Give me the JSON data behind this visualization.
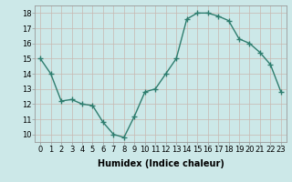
{
  "x": [
    0,
    1,
    2,
    3,
    4,
    5,
    6,
    7,
    8,
    9,
    10,
    11,
    12,
    13,
    14,
    15,
    16,
    17,
    18,
    19,
    20,
    21,
    22,
    23
  ],
  "y": [
    15.0,
    14.0,
    12.2,
    12.3,
    12.0,
    11.9,
    10.8,
    10.0,
    9.8,
    11.2,
    12.8,
    13.0,
    14.0,
    15.0,
    17.6,
    18.0,
    18.0,
    17.8,
    17.5,
    16.3,
    16.0,
    15.4,
    14.6,
    12.8
  ],
  "line_color": "#2e7d6e",
  "marker": "+",
  "marker_size": 4,
  "marker_edge_width": 1.0,
  "background_color": "#cce8e8",
  "grid_color": "#c8b8b0",
  "xlabel": "Humidex (Indice chaleur)",
  "ylim": [
    9.5,
    18.5
  ],
  "xlim": [
    -0.5,
    23.5
  ],
  "yticks": [
    10,
    11,
    12,
    13,
    14,
    15,
    16,
    17,
    18
  ],
  "xticks": [
    0,
    1,
    2,
    3,
    4,
    5,
    6,
    7,
    8,
    9,
    10,
    11,
    12,
    13,
    14,
    15,
    16,
    17,
    18,
    19,
    20,
    21,
    22,
    23
  ],
  "xtick_labels": [
    "0",
    "1",
    "2",
    "3",
    "4",
    "5",
    "6",
    "7",
    "8",
    "9",
    "10",
    "11",
    "12",
    "13",
    "14",
    "15",
    "16",
    "17",
    "18",
    "19",
    "20",
    "21",
    "22",
    "23"
  ],
  "xlabel_fontsize": 7,
  "tick_fontsize": 6,
  "line_width": 1.0
}
